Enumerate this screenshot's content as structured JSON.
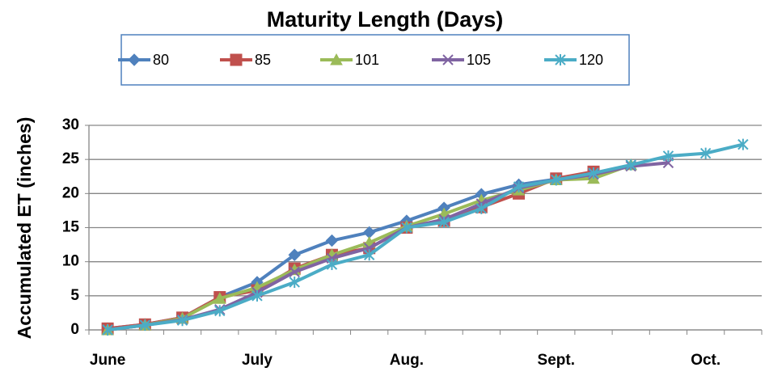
{
  "chart_data": {
    "type": "line",
    "title": "Maturity Length (Days)",
    "y_label": "Accumulated ET (inches)",
    "categories": [
      "June",
      null,
      null,
      null,
      "July",
      null,
      null,
      null,
      "Aug.",
      null,
      null,
      null,
      "Sept.",
      null,
      null,
      null,
      "Oct.",
      null
    ],
    "ylim": [
      0,
      30
    ],
    "yticks": [
      0,
      5,
      10,
      15,
      20,
      25,
      30
    ],
    "grid": true,
    "legend": "top",
    "series": [
      {
        "name": "80",
        "color": "#4f81bd",
        "marker": "diamond",
        "values": [
          0.2,
          0.8,
          1.8,
          4.8,
          7,
          11,
          13.1,
          14.3,
          16,
          17.9,
          19.9,
          21.3,
          22.1,
          23,
          null,
          null,
          null,
          null
        ]
      },
      {
        "name": "85",
        "color": "#c0504d",
        "marker": "square",
        "values": [
          0.2,
          0.8,
          1.8,
          4.8,
          5.8,
          9,
          11,
          12,
          15,
          16,
          18,
          20,
          22.2,
          23.2,
          null,
          null,
          null,
          null
        ]
      },
      {
        "name": "101",
        "color": "#9bbb59",
        "marker": "triangle",
        "values": [
          0,
          0.7,
          1.7,
          4.6,
          6.2,
          8.8,
          11,
          12.8,
          15.2,
          17,
          19,
          20.5,
          22,
          22.2,
          24.2,
          null,
          null,
          null
        ]
      },
      {
        "name": "105",
        "color": "#8064a2",
        "marker": "x",
        "values": [
          0,
          0.7,
          1.5,
          3,
          5.5,
          8.5,
          10.5,
          12,
          15,
          16.2,
          18.5,
          20.8,
          22,
          22.8,
          24,
          24.5,
          null,
          null
        ]
      },
      {
        "name": "120",
        "color": "#4bacc6",
        "marker": "star",
        "values": [
          0,
          0.7,
          1.4,
          2.8,
          5,
          7,
          9.6,
          11,
          15,
          15.8,
          17.8,
          21,
          22,
          23,
          24.2,
          25.5,
          25.9,
          27.2
        ]
      }
    ]
  }
}
